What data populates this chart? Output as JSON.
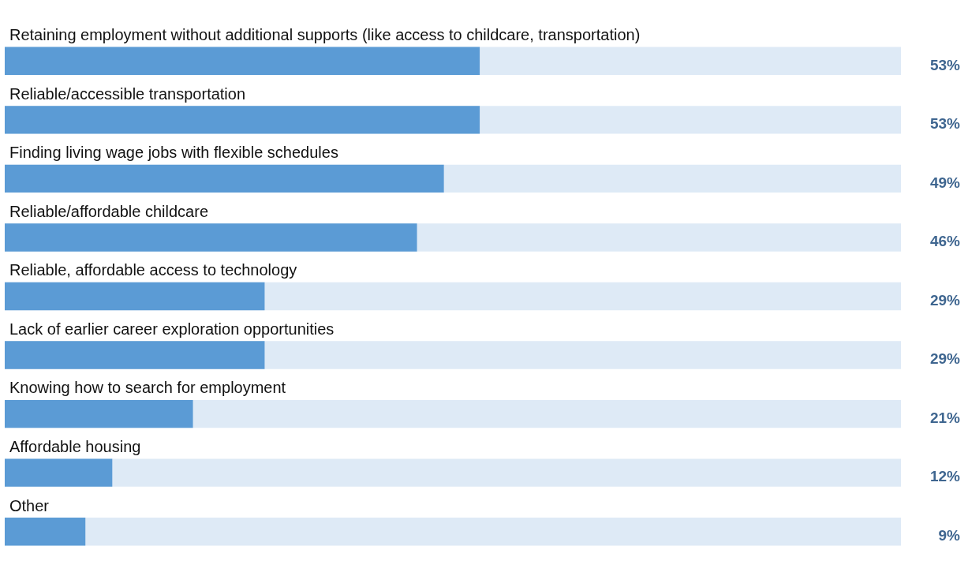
{
  "chart_data": {
    "type": "bar",
    "orientation": "horizontal",
    "categories": [
      "Retaining employment without additional supports (like access to childcare, transportation)",
      "Reliable/accessible transportation",
      "Finding living wage jobs with flexible schedules",
      "Reliable/affordable childcare",
      "Reliable, affordable access to technology",
      "Lack of earlier career exploration opportunities",
      "Knowing how to search for employment",
      "Affordable housing",
      "Other"
    ],
    "values": [
      53,
      53,
      49,
      46,
      29,
      29,
      21,
      12,
      9
    ],
    "value_labels": [
      "53%",
      "53%",
      "49%",
      "46%",
      "29%",
      "29%",
      "21%",
      "12%",
      "9%"
    ],
    "color": "#5b9bd5",
    "xlim": [
      0,
      100
    ]
  }
}
